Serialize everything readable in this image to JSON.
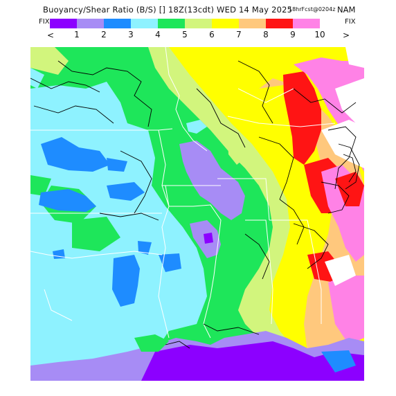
{
  "header": {
    "title": "Buoyancy/Shear Ratio (B/S) [] 18Z(13cdt) WED 14 May 2025",
    "run": "18hrFcst@0204z",
    "model": "NAM"
  },
  "legend": {
    "fix_left": "FIX",
    "fix_right": "FIX",
    "prev": "<",
    "next": ">",
    "colors": [
      "#8c00ff",
      "#a78cf5",
      "#1e8cff",
      "#8ef2ff",
      "#1ee65a",
      "#d2f57d",
      "#ffff00",
      "#ffc87d",
      "#ff1414",
      "#ff82e6",
      "#ffffff"
    ],
    "ticks": [
      "1",
      "2",
      "3",
      "4",
      "5",
      "6",
      "7",
      "8",
      "9",
      "10"
    ]
  },
  "map": {
    "region": "South-central US (Mid-South / Gulf Coast)",
    "palette": {
      "cyan": "#8ef2ff",
      "green": "#1ee65a",
      "lime": "#d2f57d",
      "yellow": "#ffff00",
      "orange": "#ffc87d",
      "red": "#ff1414",
      "pink": "#ff82e6",
      "blue": "#1e8cff",
      "lavender": "#a78cf5",
      "purple": "#8c00ff"
    }
  }
}
